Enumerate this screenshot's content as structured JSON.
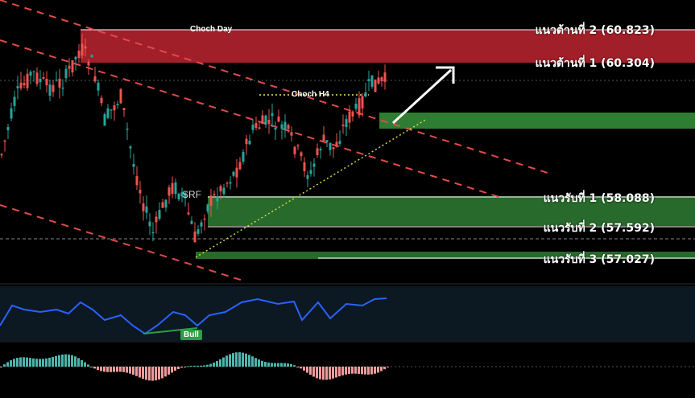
{
  "chart_data": {
    "type": "candlestick",
    "colors": {
      "up": "#26a69a",
      "down": "#ef5350",
      "resistance_zone": "#b3222e",
      "support_zone": "#2e7d32",
      "rsi": "#2962ff",
      "trend": "#ff4d4d",
      "arrow": "#ffffff"
    },
    "resistance": [
      {
        "label": "แนวต้านที่ 2 (60.823)",
        "value": 60.823
      },
      {
        "label": "แนวต้านที่ 1 (60.304)",
        "value": 60.304
      }
    ],
    "support": [
      {
        "label": "แนวรับที่ 1 (58.088)",
        "value": 58.088
      },
      {
        "label": "แนวรับที่ 2 (57.592)",
        "value": 57.592
      },
      {
        "label": "แนวรับที่ 3 (57.027)",
        "value": 57.027
      }
    ],
    "annotations": {
      "choch_day": "Choch Day",
      "choch_h4": "Choch H4",
      "srf": "SRF",
      "bull": "Bull"
    }
  }
}
